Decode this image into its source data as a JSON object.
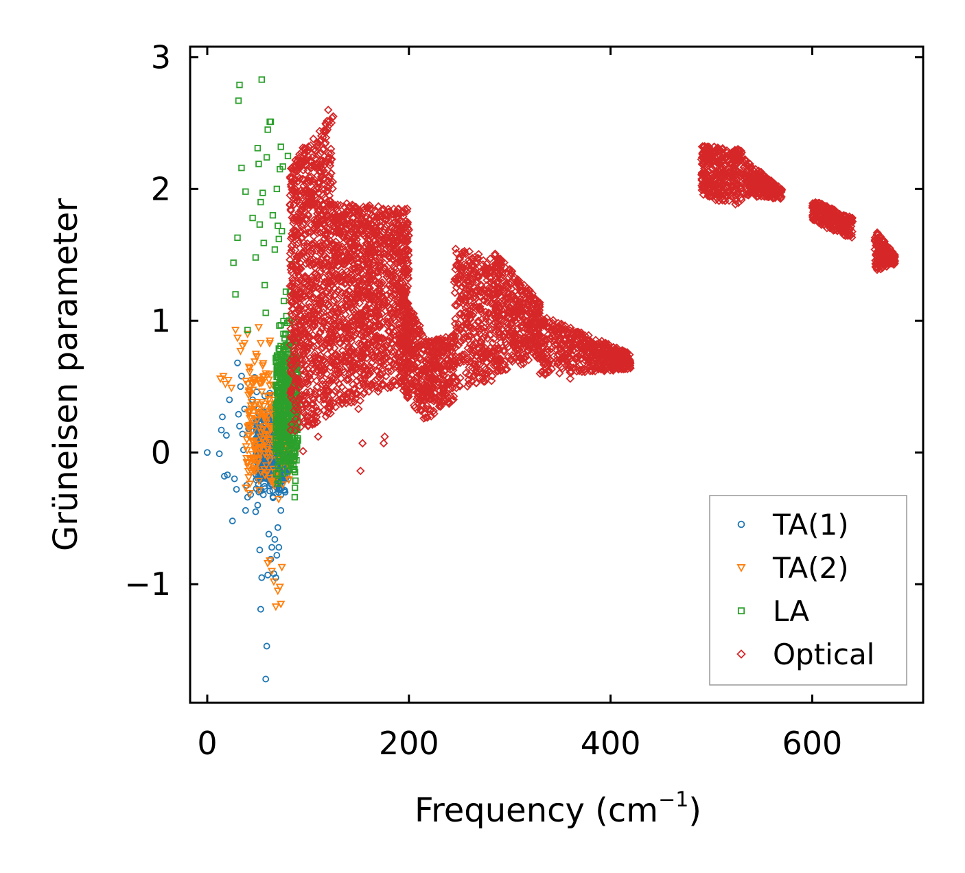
{
  "chart_data": {
    "type": "scatter",
    "title": "",
    "xlabel": "Frequency (cm",
    "xlabel_sup": "−1",
    "xlabel_suffix": ")",
    "ylabel": "Grüneisen parameter",
    "xlim": [
      -17,
      710
    ],
    "ylim": [
      -1.9,
      3.08
    ],
    "xticks": [
      0,
      200,
      400,
      600
    ],
    "xtick_labels": [
      "0",
      "200",
      "400",
      "600"
    ],
    "yticks": [
      -1,
      0,
      1,
      2,
      3
    ],
    "ytick_labels": [
      "−1",
      "0",
      "1",
      "2",
      "3"
    ],
    "legend_position": "lower right",
    "series": [
      {
        "name": "TA(1)",
        "marker": "circle",
        "color": "#1f77b4",
        "points": [
          [
            0,
            0
          ],
          [
            12,
            -0.01
          ],
          [
            14,
            0.17
          ],
          [
            15,
            0.27
          ],
          [
            17,
            -0.18
          ],
          [
            19,
            0.13
          ],
          [
            20,
            -0.17
          ],
          [
            22,
            0.4
          ],
          [
            25,
            -0.52
          ],
          [
            27,
            -0.2
          ],
          [
            29,
            -0.28
          ],
          [
            30,
            0.68
          ],
          [
            31,
            0.29
          ],
          [
            32,
            0.2
          ],
          [
            33,
            0.5
          ],
          [
            34,
            0.58
          ],
          [
            35,
            0.14
          ],
          [
            36,
            0.02
          ],
          [
            37,
            0.33
          ],
          [
            38,
            -0.44
          ],
          [
            39,
            -0.25
          ],
          [
            40,
            -0.34
          ],
          [
            41,
            0.18
          ],
          [
            42,
            0.47
          ],
          [
            43,
            -0.32
          ],
          [
            44,
            0.2
          ],
          [
            45,
            0.4
          ],
          [
            46,
            -0.1
          ],
          [
            47,
            0.57
          ],
          [
            48,
            -0.45
          ],
          [
            49,
            0.46
          ],
          [
            50,
            -0.4
          ],
          [
            51,
            0.33
          ],
          [
            52,
            -0.74
          ],
          [
            53,
            -1.19
          ],
          [
            54,
            -0.95
          ],
          [
            55,
            0.3
          ],
          [
            56,
            -0.05
          ],
          [
            57,
            0.43
          ],
          [
            58,
            -1.72
          ],
          [
            59,
            -1.47
          ],
          [
            60,
            -0.93
          ],
          [
            61,
            -0.62
          ],
          [
            62,
            0.45
          ],
          [
            63,
            -0.81
          ],
          [
            64,
            -0.72
          ],
          [
            65,
            0.33
          ],
          [
            66,
            -0.92
          ],
          [
            67,
            -0.66
          ],
          [
            68,
            -0.95
          ],
          [
            69,
            -0.78
          ],
          [
            70,
            -0.57
          ],
          [
            71,
            -0.72
          ],
          [
            72,
            0.36
          ],
          [
            73,
            -0.44
          ],
          [
            74,
            0.14
          ],
          [
            75,
            -0.12
          ],
          [
            76,
            0.28
          ],
          [
            78,
            0.03
          ],
          [
            80,
            -0.2
          ]
        ],
        "cloud": {
          "x": [
            48,
            80
          ],
          "y": [
            -0.4,
            0.4
          ],
          "n": 700
        }
      },
      {
        "name": "TA(2)",
        "marker": "triangle",
        "color": "#ff7f0e",
        "points": [
          [
            13,
            0.56
          ],
          [
            16,
            0.58
          ],
          [
            18,
            0.52
          ],
          [
            21,
            0.55
          ],
          [
            24,
            0.49
          ],
          [
            28,
            0.93
          ],
          [
            30,
            0.87
          ],
          [
            33,
            0.77
          ],
          [
            35,
            0.81
          ],
          [
            37,
            0.83
          ],
          [
            40,
            0.9
          ],
          [
            42,
            0.64
          ],
          [
            44,
            0.53
          ],
          [
            47,
            0.69
          ],
          [
            49,
            0.73
          ],
          [
            51,
            0.95
          ],
          [
            53,
            0.83
          ],
          [
            55,
            0.66
          ],
          [
            58,
            0.6
          ],
          [
            60,
            -0.84
          ],
          [
            62,
            -0.82
          ],
          [
            64,
            -0.9
          ],
          [
            66,
            -0.98
          ],
          [
            68,
            -1.17
          ],
          [
            70,
            -1.05
          ],
          [
            72,
            -1.02
          ],
          [
            73,
            -1.15
          ],
          [
            74,
            -0.87
          ],
          [
            76,
            0.8
          ],
          [
            78,
            0.72
          ],
          [
            80,
            0.68
          ]
        ],
        "cloud": {
          "x": [
            38,
            84
          ],
          "y": [
            -0.6,
            0.95
          ],
          "n": 250
        }
      },
      {
        "name": "LA",
        "marker": "square",
        "color": "#2ca02c",
        "points": [
          [
            26,
            1.44
          ],
          [
            28,
            1.2
          ],
          [
            30,
            1.63
          ],
          [
            31,
            2.67
          ],
          [
            32,
            2.79
          ],
          [
            34,
            2.16
          ],
          [
            38,
            1.98
          ],
          [
            40,
            0.93
          ],
          [
            45,
            1.78
          ],
          [
            48,
            1.48
          ],
          [
            50,
            2.31
          ],
          [
            51,
            2.19
          ],
          [
            52,
            1.73
          ],
          [
            53,
            1.9
          ],
          [
            54,
            2.83
          ],
          [
            55,
            1.97
          ],
          [
            56,
            1.59
          ],
          [
            57,
            1.27
          ],
          [
            58,
            1.06
          ],
          [
            59,
            2.24
          ],
          [
            60,
            2.45
          ],
          [
            62,
            2.51
          ],
          [
            63,
            2.51
          ],
          [
            65,
            1.8
          ],
          [
            67,
            1.54
          ],
          [
            69,
            2.0
          ],
          [
            70,
            1.72
          ],
          [
            71,
            1.62
          ],
          [
            72,
            2.15
          ],
          [
            73,
            2.32
          ],
          [
            74,
            1.68
          ],
          [
            75,
            2.17
          ],
          [
            76,
            1.15
          ],
          [
            78,
            1.22
          ],
          [
            80,
            2.25
          ],
          [
            82,
            1.22
          ],
          [
            84,
            1.43
          ]
        ],
        "cloud": {
          "x": [
            68,
            90
          ],
          "y": [
            -0.45,
            1.2
          ],
          "n": 500
        }
      },
      {
        "name": "Optical",
        "marker": "diamond",
        "color": "#d62728",
        "points": [
          [
            152,
            -0.14
          ],
          [
            154,
            0.07
          ],
          [
            175,
            0.07
          ],
          [
            176,
            0.12
          ],
          [
            138,
            0.4
          ],
          [
            150,
            0.33
          ],
          [
            95,
            0.01
          ],
          [
            100,
            0.2
          ],
          [
            110,
            0.12
          ],
          [
            360,
            0.56
          ],
          [
            415,
            0.64
          ],
          [
            120,
            2.6
          ]
        ],
        "envelopes": [
          {
            "x": [
              82,
              125
            ],
            "ylo": [
              0.1,
              0.25
            ],
            "yhi": [
              2.2,
              2.58
            ],
            "n": 900
          },
          {
            "x": [
              125,
              200
            ],
            "ylo": [
              0.3,
              0.55
            ],
            "yhi": [
              1.9,
              1.85
            ],
            "n": 1200
          },
          {
            "x": [
              190,
              215
            ],
            "ylo": [
              0.5,
              0.25
            ],
            "yhi": [
              1.3,
              0.9
            ],
            "n": 250
          },
          {
            "x": [
              215,
              245
            ],
            "ylo": [
              0.22,
              0.4
            ],
            "yhi": [
              0.85,
              0.9
            ],
            "n": 250
          },
          {
            "x": [
              245,
              290
            ],
            "ylo": [
              0.45,
              0.55
            ],
            "yhi": [
              1.58,
              1.45
            ],
            "n": 400
          },
          {
            "x": [
              285,
              330
            ],
            "ylo": [
              0.6,
              0.7
            ],
            "yhi": [
              1.52,
              1.15
            ],
            "n": 400
          },
          {
            "x": [
              330,
              420
            ],
            "ylo": [
              0.58,
              0.63
            ],
            "yhi": [
              1.05,
              0.75
            ],
            "n": 500
          },
          {
            "x": [
              490,
              530
            ],
            "ylo": [
              1.95,
              1.85
            ],
            "yhi": [
              2.33,
              2.3
            ],
            "n": 350
          },
          {
            "x": [
              530,
              570
            ],
            "ylo": [
              1.95,
              1.92
            ],
            "yhi": [
              2.25,
              2.0
            ],
            "n": 250
          },
          {
            "x": [
              600,
              640
            ],
            "ylo": [
              1.75,
              1.62
            ],
            "yhi": [
              1.92,
              1.78
            ],
            "n": 250
          },
          {
            "x": [
              662,
              682
            ],
            "ylo": [
              1.38,
              1.42
            ],
            "yhi": [
              1.7,
              1.5
            ],
            "n": 220
          }
        ]
      }
    ]
  }
}
